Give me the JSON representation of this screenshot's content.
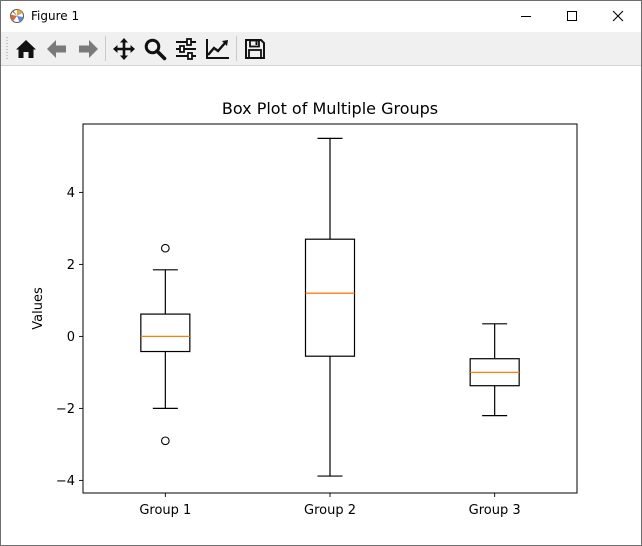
{
  "window": {
    "title": "Figure 1",
    "controls": [
      "minimize-icon",
      "maximize-icon",
      "close-icon"
    ]
  },
  "toolbar": {
    "buttons": [
      "home-icon",
      "back-arrow-icon",
      "forward-arrow-icon",
      "pan-icon",
      "zoom-icon",
      "configure-subplots-icon",
      "edit-axis-icon",
      "save-icon"
    ]
  },
  "colors": {
    "median": "#ff7f0e",
    "box": "#000000",
    "toolbar_bg": "#f0f0f0"
  },
  "chart_data": {
    "type": "boxplot",
    "title": "Box Plot of Multiple Groups",
    "xlabel": "",
    "ylabel": "Values",
    "ylim": [
      -4.35,
      5.9
    ],
    "yticks": [
      -4,
      -2,
      0,
      2,
      4
    ],
    "ytick_labels": [
      "−4",
      "−2",
      "0",
      "2",
      "4"
    ],
    "categories": [
      "Group 1",
      "Group 2",
      "Group 3"
    ],
    "groups": [
      {
        "label": "Group 1",
        "whisker_low": -2.0,
        "q1": -0.42,
        "median": 0.0,
        "q3": 0.62,
        "whisker_high": 1.85,
        "outliers": [
          2.45,
          -2.9
        ]
      },
      {
        "label": "Group 2",
        "whisker_low": -3.88,
        "q1": -0.55,
        "median": 1.2,
        "q3": 2.7,
        "whisker_high": 5.5,
        "outliers": []
      },
      {
        "label": "Group 3",
        "whisker_low": -2.2,
        "q1": -1.37,
        "median": -1.0,
        "q3": -0.62,
        "whisker_high": 0.35,
        "outliers": []
      }
    ],
    "grid": false,
    "legend": "none"
  }
}
